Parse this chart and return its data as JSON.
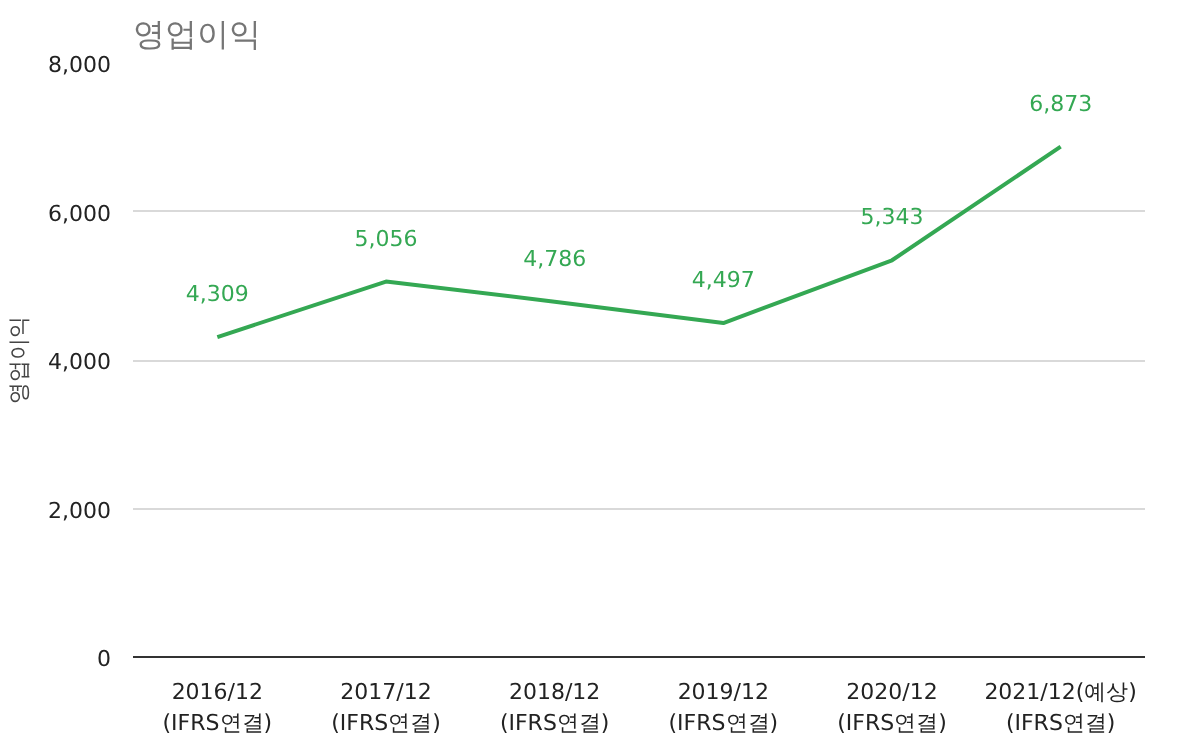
{
  "chart_data": {
    "type": "line",
    "title": "영업이익",
    "ylabel": "영업이익",
    "categories": [
      "2016/12\n(IFRS연결)",
      "2017/12\n(IFRS연결)",
      "2018/12\n(IFRS연결)",
      "2019/12\n(IFRS연결)",
      "2020/12\n(IFRS연결)",
      "2021/12(예상)\n(IFRS연결)"
    ],
    "series": [
      {
        "color": "#34a853",
        "values": [
          4309,
          5056,
          4786,
          4497,
          5343,
          6873
        ]
      }
    ],
    "value_labels": [
      "4,309",
      "5,056",
      "4,786",
      "4,497",
      "5,343",
      "6,873"
    ],
    "ylim": [
      0,
      8000
    ],
    "yticks": [
      {
        "value": 0,
        "label": "0"
      },
      {
        "value": 2000,
        "label": "2,000"
      },
      {
        "value": 4000,
        "label": "4,000"
      },
      {
        "value": 6000,
        "label": "6,000"
      },
      {
        "value": 8000,
        "label": "8,000"
      }
    ],
    "grid": "y",
    "marker": "none",
    "line_style": "solid"
  }
}
